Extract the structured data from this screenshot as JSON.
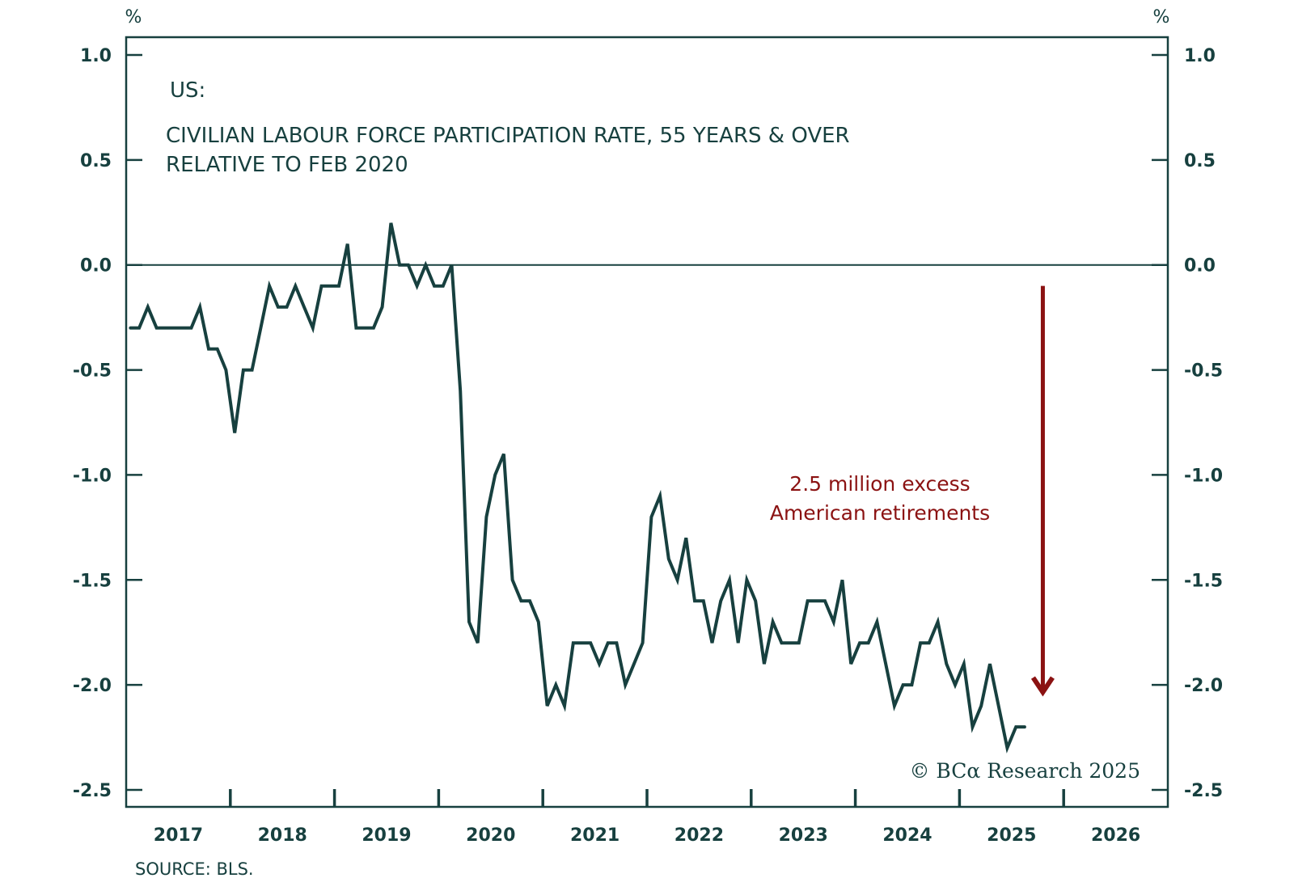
{
  "chart_data": {
    "type": "line",
    "title": "US:",
    "subtitle_lines": [
      "CIVILIAN LABOUR FORCE PARTICIPATION RATE, 55 YEARS & OVER",
      "RELATIVE TO FEB 2020"
    ],
    "xlabel": "",
    "ylabel_left": "%",
    "ylabel_right": "%",
    "xlim": [
      2017,
      2027
    ],
    "ylim": [
      -2.5,
      1.0
    ],
    "x_tick_labels": [
      "2017",
      "2018",
      "2019",
      "2020",
      "2021",
      "2022",
      "2023",
      "2024",
      "2025",
      "2026"
    ],
    "y_ticks": [
      1.0,
      0.5,
      0.0,
      -0.5,
      -1.0,
      -1.5,
      -2.0,
      -2.5
    ],
    "y_tick_labels": [
      "1.0",
      "0.5",
      "0.0",
      "-0.5",
      "-1.0",
      "-1.5",
      "-2.0",
      "-2.5"
    ],
    "reference_line": 0.0,
    "grid": false,
    "start": "2017-01",
    "frequency": "monthly",
    "series": [
      {
        "name": "Civilian labour force participation rate, 55 years & over, relative to Feb 2020",
        "color": "#17403f",
        "values": [
          -0.3,
          -0.3,
          -0.2,
          -0.3,
          -0.3,
          -0.3,
          -0.3,
          -0.3,
          -0.2,
          -0.4,
          -0.4,
          -0.5,
          -0.8,
          -0.5,
          -0.5,
          -0.3,
          -0.1,
          -0.2,
          -0.2,
          -0.1,
          -0.2,
          -0.3,
          -0.1,
          -0.1,
          -0.1,
          0.1,
          -0.3,
          -0.3,
          -0.3,
          -0.2,
          0.2,
          0.0,
          0.0,
          -0.1,
          0.0,
          -0.1,
          -0.1,
          0.0,
          -0.6,
          -1.7,
          -1.8,
          -1.2,
          -1.0,
          -0.9,
          -1.5,
          -1.6,
          -1.6,
          -1.7,
          -2.1,
          -2.0,
          -2.1,
          -1.8,
          -1.8,
          -1.8,
          -1.9,
          -1.8,
          -1.8,
          -2.0,
          -1.9,
          -1.8,
          -1.2,
          -1.1,
          -1.4,
          -1.5,
          -1.3,
          -1.6,
          -1.6,
          -1.8,
          -1.6,
          -1.5,
          -1.8,
          -1.5,
          -1.6,
          -1.9,
          -1.7,
          -1.8,
          -1.8,
          -1.8,
          -1.6,
          -1.6,
          -1.6,
          -1.7,
          -1.5,
          -1.9,
          -1.8,
          -1.8,
          -1.7,
          -1.9,
          -2.1,
          -2.0,
          -2.0,
          -1.8,
          -1.8,
          -1.7,
          -1.9,
          -2.0,
          -1.9,
          -2.2,
          -2.1,
          -1.9,
          -2.1,
          -2.3,
          -2.2,
          -2.2
        ]
      }
    ],
    "annotation": {
      "lines": [
        "2.5 million excess",
        "American retirements"
      ],
      "color": "#8b1212",
      "arrow_from": {
        "x": 2025.8,
        "y": -0.1
      },
      "arrow_to": {
        "x": 2025.8,
        "y": -2.05
      }
    },
    "source": "SOURCE: BLS.",
    "copyright": "© BCα Research 2025"
  }
}
